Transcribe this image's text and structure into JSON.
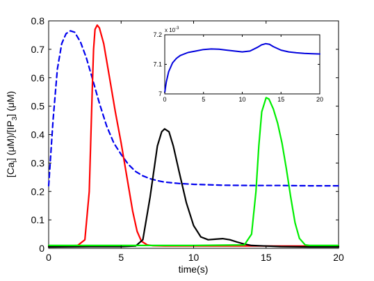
{
  "chart_data": [
    {
      "type": "line",
      "title": "",
      "xlabel": "time(s)",
      "ylabel_parts": [
        "[Ca",
        "i",
        "] (",
        "μ",
        "M)/[IP",
        "3",
        "] (",
        "μ",
        "M)"
      ],
      "xlim": [
        0,
        20
      ],
      "ylim": [
        0,
        0.8
      ],
      "xticks": [
        0,
        5,
        10,
        15,
        20
      ],
      "yticks": [
        0,
        0.1,
        0.2,
        0.3,
        0.4,
        0.5,
        0.6,
        0.7,
        0.8
      ],
      "ytick_labels": [
        "0",
        "0.1",
        "0.2",
        "0.3",
        "0.4",
        "0.5",
        "0.6",
        "0.7",
        "0.8"
      ],
      "grid": false,
      "series": [
        {
          "color": "#0000ee",
          "style": "dashed",
          "x": [
            0,
            0.3,
            0.6,
            0.9,
            1.2,
            1.5,
            1.8,
            2.2,
            2.6,
            3.0,
            3.5,
            4.0,
            4.5,
            5.0,
            5.5,
            6.0,
            6.5,
            7.0,
            7.5,
            8.0,
            9.0,
            10.0,
            12.0,
            14.0,
            16.0,
            18.0,
            20.0
          ],
          "y": [
            0.22,
            0.45,
            0.63,
            0.72,
            0.755,
            0.765,
            0.76,
            0.725,
            0.67,
            0.6,
            0.51,
            0.43,
            0.37,
            0.33,
            0.295,
            0.27,
            0.255,
            0.245,
            0.238,
            0.233,
            0.228,
            0.225,
            0.222,
            0.221,
            0.221,
            0.22,
            0.22
          ]
        },
        {
          "color": "#ff0000",
          "style": "solid",
          "x": [
            0,
            1.0,
            2.0,
            2.5,
            2.8,
            3.0,
            3.1,
            3.2,
            3.35,
            3.5,
            3.8,
            4.2,
            4.6,
            5.0,
            5.4,
            5.8,
            6.1,
            6.4,
            6.8,
            7.2,
            8.0,
            10.0,
            20.0
          ],
          "y": [
            0.007,
            0.008,
            0.01,
            0.03,
            0.2,
            0.55,
            0.7,
            0.77,
            0.785,
            0.775,
            0.72,
            0.6,
            0.48,
            0.37,
            0.25,
            0.13,
            0.06,
            0.025,
            0.012,
            0.009,
            0.008,
            0.008,
            0.008
          ]
        },
        {
          "color": "#000000",
          "style": "solid",
          "x": [
            0,
            3.0,
            5.0,
            6.0,
            6.5,
            7.0,
            7.5,
            7.8,
            8.0,
            8.3,
            8.6,
            9.0,
            9.5,
            10.0,
            10.5,
            11.0,
            11.5,
            12.0,
            12.5,
            13.0,
            13.5,
            14.0,
            15.0,
            16.0,
            18.0,
            20.0
          ],
          "y": [
            0.005,
            0.006,
            0.006,
            0.008,
            0.03,
            0.18,
            0.36,
            0.41,
            0.42,
            0.41,
            0.36,
            0.27,
            0.16,
            0.08,
            0.04,
            0.03,
            0.032,
            0.034,
            0.03,
            0.022,
            0.015,
            0.01,
            0.008,
            0.006,
            0.005,
            0.005
          ]
        },
        {
          "color": "#00ee00",
          "style": "solid",
          "x": [
            0,
            6.0,
            10.0,
            13.5,
            14.0,
            14.3,
            14.5,
            14.7,
            15.0,
            15.2,
            15.5,
            15.8,
            16.1,
            16.4,
            16.7,
            17.0,
            17.3,
            17.7,
            18.0,
            20.0
          ],
          "y": [
            0.01,
            0.01,
            0.01,
            0.012,
            0.05,
            0.2,
            0.36,
            0.48,
            0.53,
            0.525,
            0.49,
            0.44,
            0.37,
            0.28,
            0.18,
            0.09,
            0.035,
            0.012,
            0.01,
            0.01
          ]
        }
      ]
    },
    {
      "type": "line",
      "title": "",
      "xlim": [
        0,
        20
      ],
      "ylim": [
        7.0,
        7.2
      ],
      "xticks": [
        0,
        5,
        10,
        15,
        20
      ],
      "yticks": [
        7.0,
        7.1,
        7.2
      ],
      "ytick_labels": [
        "7",
        "7.1",
        "7.2"
      ],
      "y_multiplier_base": "x 10",
      "y_multiplier_exp": "-3",
      "series": [
        {
          "color": "#0000dd",
          "style": "solid",
          "x": [
            0,
            0.2,
            0.5,
            1.0,
            1.5,
            2.0,
            3.0,
            4.0,
            5.0,
            6.0,
            7.0,
            8.0,
            9.0,
            10.0,
            11.0,
            12.0,
            12.5,
            13.0,
            13.5,
            14.0,
            15.0,
            16.0,
            17.0,
            18.0,
            19.0,
            20.0
          ],
          "y": [
            7.005,
            7.04,
            7.075,
            7.105,
            7.12,
            7.13,
            7.14,
            7.145,
            7.15,
            7.152,
            7.151,
            7.148,
            7.145,
            7.142,
            7.145,
            7.158,
            7.166,
            7.17,
            7.168,
            7.16,
            7.148,
            7.142,
            7.139,
            7.137,
            7.136,
            7.135
          ]
        }
      ]
    }
  ]
}
